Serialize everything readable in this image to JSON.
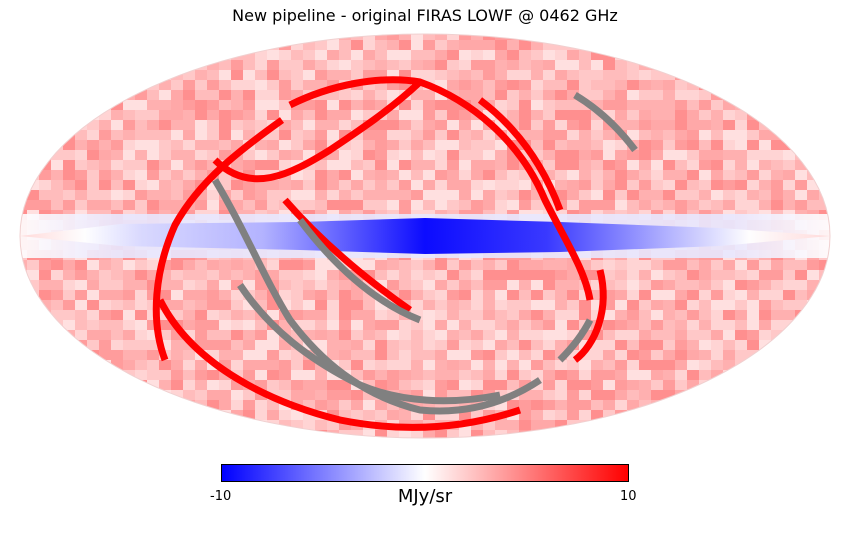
{
  "figure": {
    "title": "New pipeline - original FIRAS LOWF @ 0462 GHz",
    "projection": "Mollweide",
    "mask_color": "#808080"
  },
  "colorbar": {
    "min_label": "-10",
    "max_label": "10",
    "unit_label": "MJy/sr",
    "range": [
      -10,
      10
    ],
    "colors": {
      "low": "#0000ff",
      "mid": "#ffffff",
      "high": "#ff0000"
    }
  }
}
